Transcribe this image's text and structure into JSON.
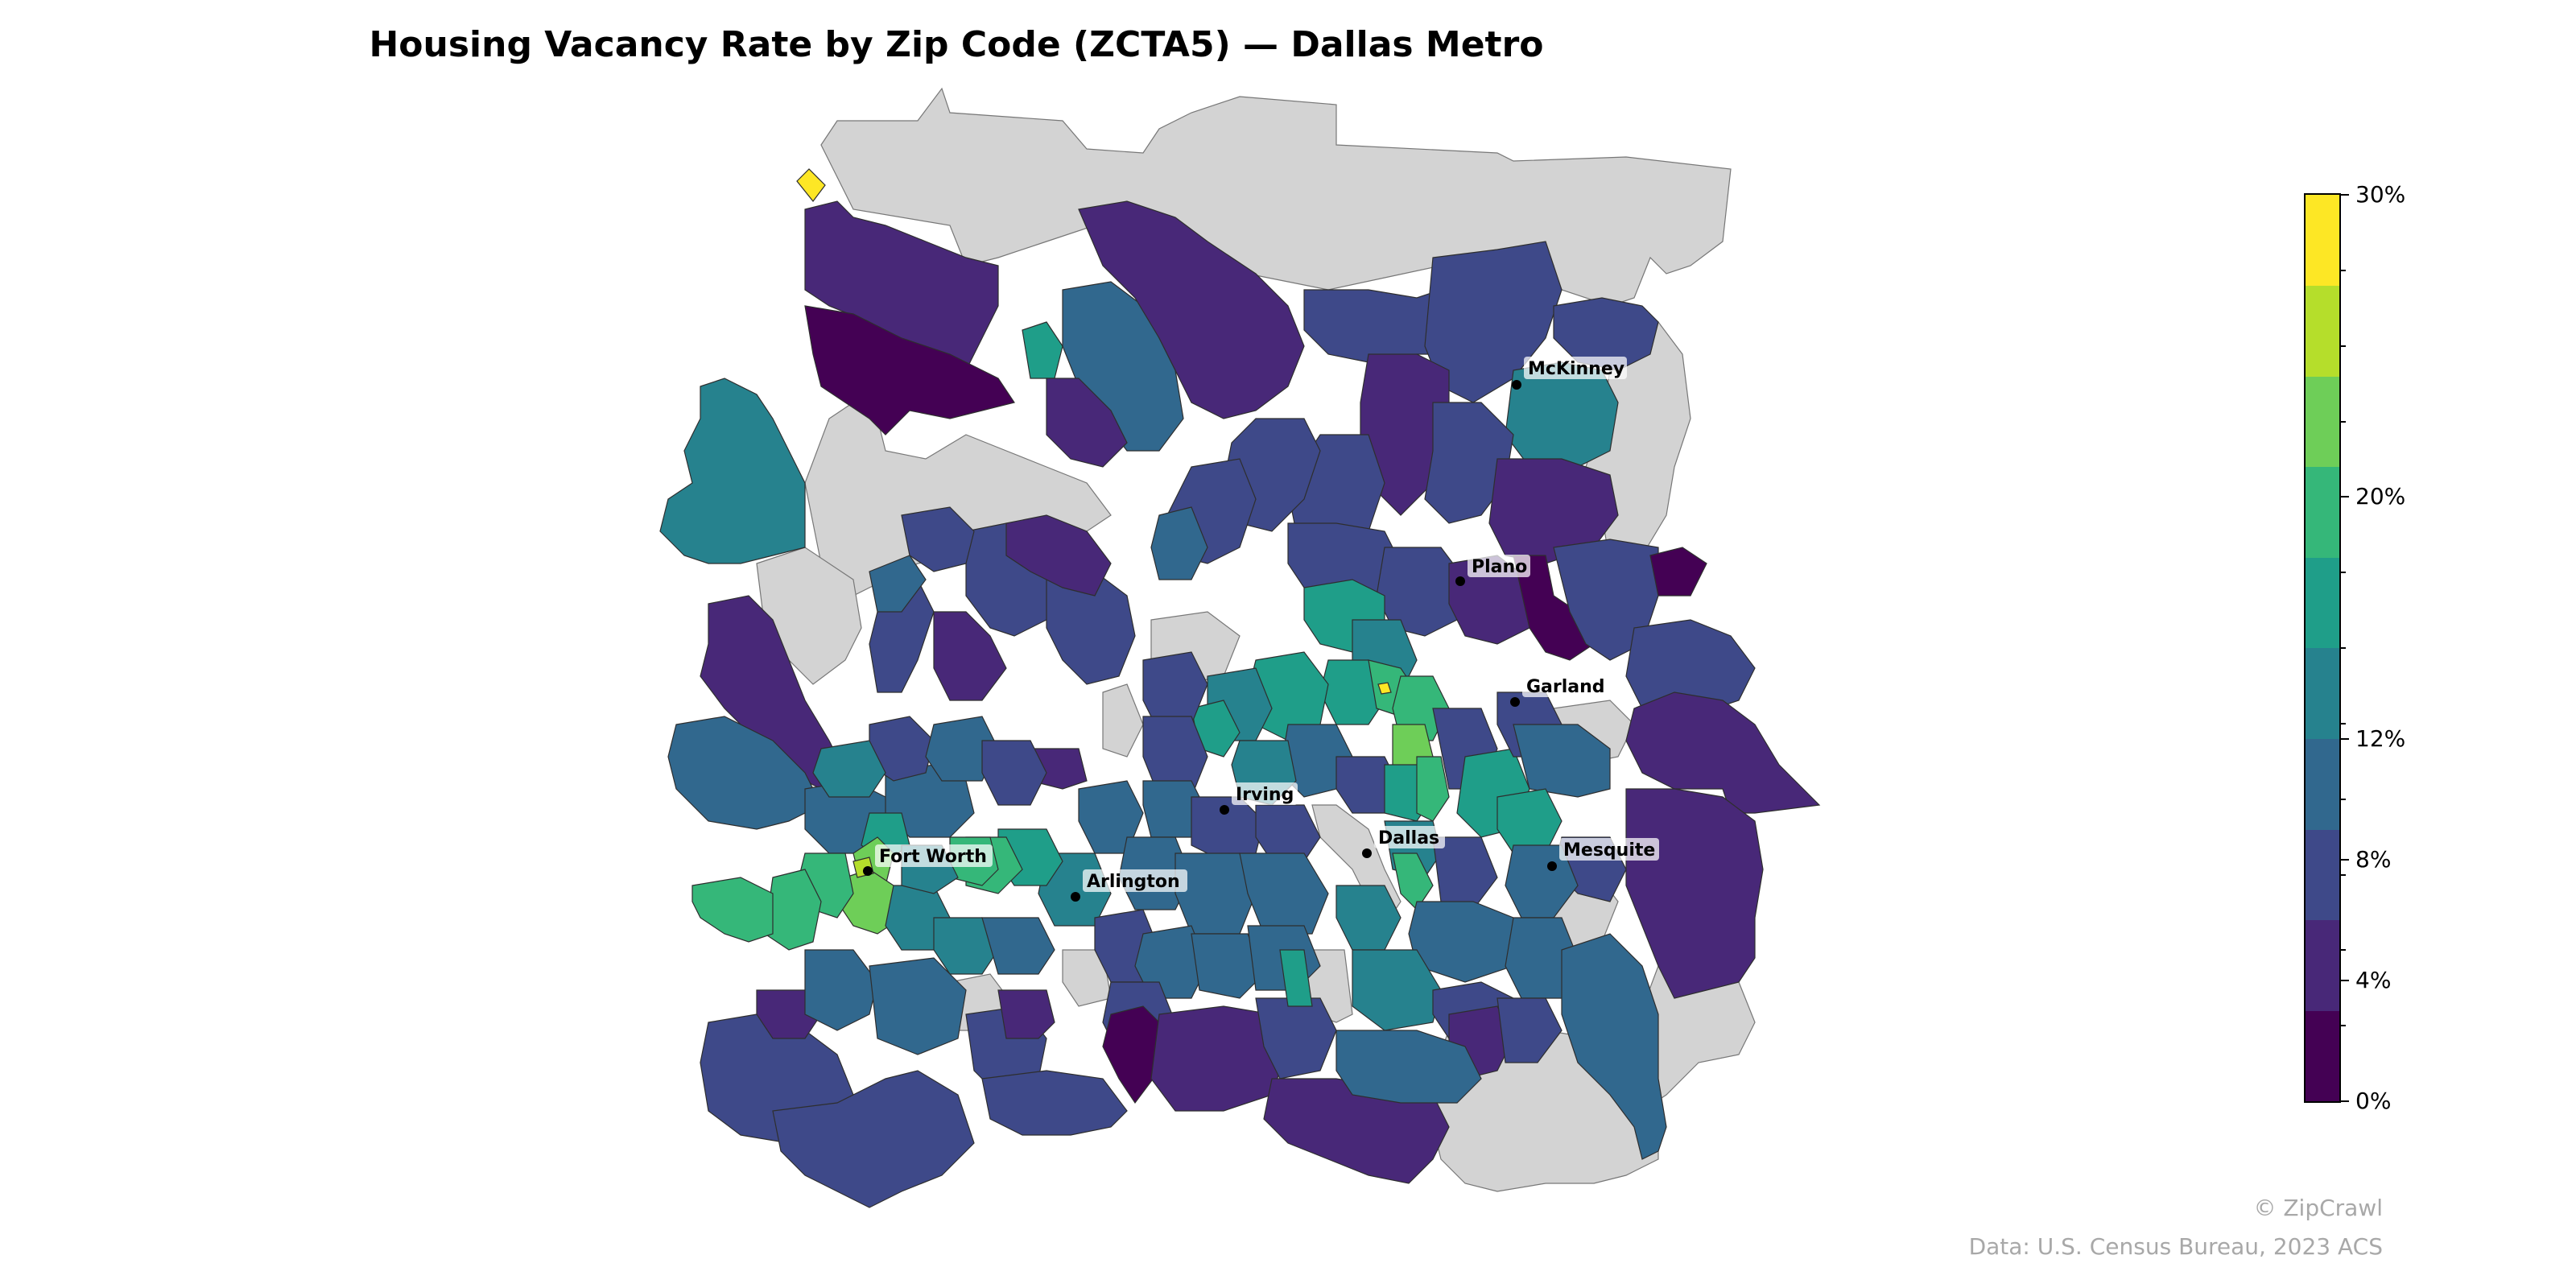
{
  "title": "Housing Vacancy Rate by Zip Code (ZCTA5) — Dallas Metro",
  "legend": {
    "min": 0,
    "max": 30,
    "unit": "%",
    "bins": [
      0,
      2.5,
      5,
      7.5,
      10,
      12.5,
      15,
      17.5,
      20,
      22.5,
      25,
      27.5,
      30
    ],
    "colors": [
      "#440154",
      "#482878",
      "#3e4989",
      "#31688e",
      "#26828e",
      "#1f9e89",
      "#35b779",
      "#6ece58",
      "#b5de2b",
      "#fde725"
    ],
    "tick_labels": [
      "0%",
      "4%",
      "8%",
      "12%",
      "20%",
      "30%"
    ],
    "tick_values": [
      0,
      4,
      8,
      12,
      20,
      30
    ]
  },
  "no_data_color": "#d3d3d3",
  "cities": [
    {
      "name": "McKinney"
    },
    {
      "name": "Plano"
    },
    {
      "name": "Garland"
    },
    {
      "name": "Irving"
    },
    {
      "name": "Dallas"
    },
    {
      "name": "Mesquite"
    },
    {
      "name": "Fort Worth"
    },
    {
      "name": "Arlington"
    }
  ],
  "attribution": {
    "copyright": "© ZipCrawl",
    "source": "Data: U.S. Census Bureau, 2023 ACS"
  }
}
